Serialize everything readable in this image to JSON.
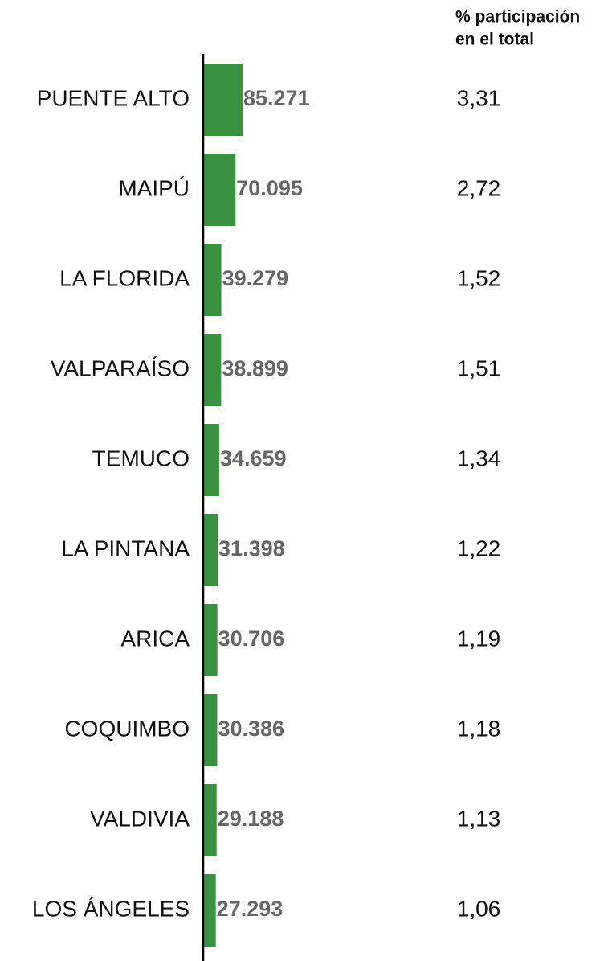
{
  "chart_data": {
    "type": "bar",
    "orientation": "horizontal",
    "color": "#3a913f",
    "categories": [
      "PUENTE ALTO",
      "MAIPÚ",
      "LA FLORIDA",
      "VALPARAÍSO",
      "TEMUCO",
      "LA PINTANA",
      "ARICA",
      "COQUIMBO",
      "VALDIVIA",
      "LOS ÁNGELES"
    ],
    "values": [
      85271,
      70095,
      39279,
      38899,
      34659,
      31398,
      30706,
      30386,
      29188,
      27293
    ],
    "value_labels": [
      "85.271",
      "70.095",
      "39.279",
      "38.899",
      "34.659",
      "31.398",
      "30.706",
      "30.386",
      "29.188",
      "27.293"
    ],
    "share": {
      "header": [
        "% participación",
        "en el total"
      ],
      "values": [
        3.31,
        2.72,
        1.52,
        1.51,
        1.34,
        1.22,
        1.19,
        1.18,
        1.13,
        1.06
      ],
      "value_labels": [
        "3,31",
        "2,72",
        "1,52",
        "1,51",
        "1,34",
        "1,22",
        "1,19",
        "1,18",
        "1,13",
        "1,06"
      ]
    }
  }
}
